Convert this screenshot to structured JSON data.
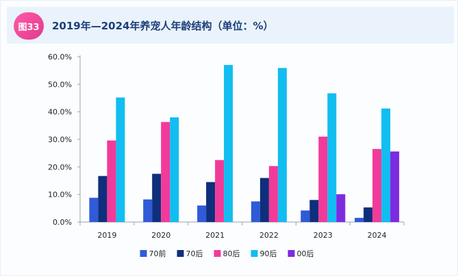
{
  "figure": {
    "badge": "图33",
    "title": "2019年—2024年养宠人年龄结构（单位：%）"
  },
  "colors": {
    "70前": "#2f5bd8",
    "70后": "#0f2f7c",
    "80后": "#f23a9a",
    "90后": "#12bdf0",
    "00后": "#7d2ae0"
  },
  "chart_data": {
    "type": "bar",
    "title": "2019年—2024年养宠人年龄结构（单位：%）",
    "xlabel": "",
    "ylabel": "",
    "categories": [
      "2019",
      "2020",
      "2021",
      "2022",
      "2023",
      "2024"
    ],
    "ylim": [
      0,
      60
    ],
    "yticks": [
      "0.0%",
      "10.0%",
      "20.0%",
      "30.0%",
      "40.0%",
      "50.0%",
      "60.0%"
    ],
    "legend_position": "bottom",
    "series": [
      {
        "name": "70前",
        "values": [
          8.8,
          8.2,
          6.0,
          7.5,
          4.2,
          1.5
        ]
      },
      {
        "name": "70后",
        "values": [
          16.7,
          17.5,
          14.5,
          16.0,
          8.0,
          5.3
        ]
      },
      {
        "name": "80后",
        "values": [
          29.6,
          36.3,
          22.5,
          20.3,
          31.0,
          26.5
        ]
      },
      {
        "name": "90后",
        "values": [
          45.2,
          38.0,
          57.0,
          55.9,
          46.7,
          41.2
        ]
      },
      {
        "name": "00后",
        "values": [
          null,
          null,
          null,
          null,
          10.1,
          25.6
        ]
      }
    ]
  }
}
